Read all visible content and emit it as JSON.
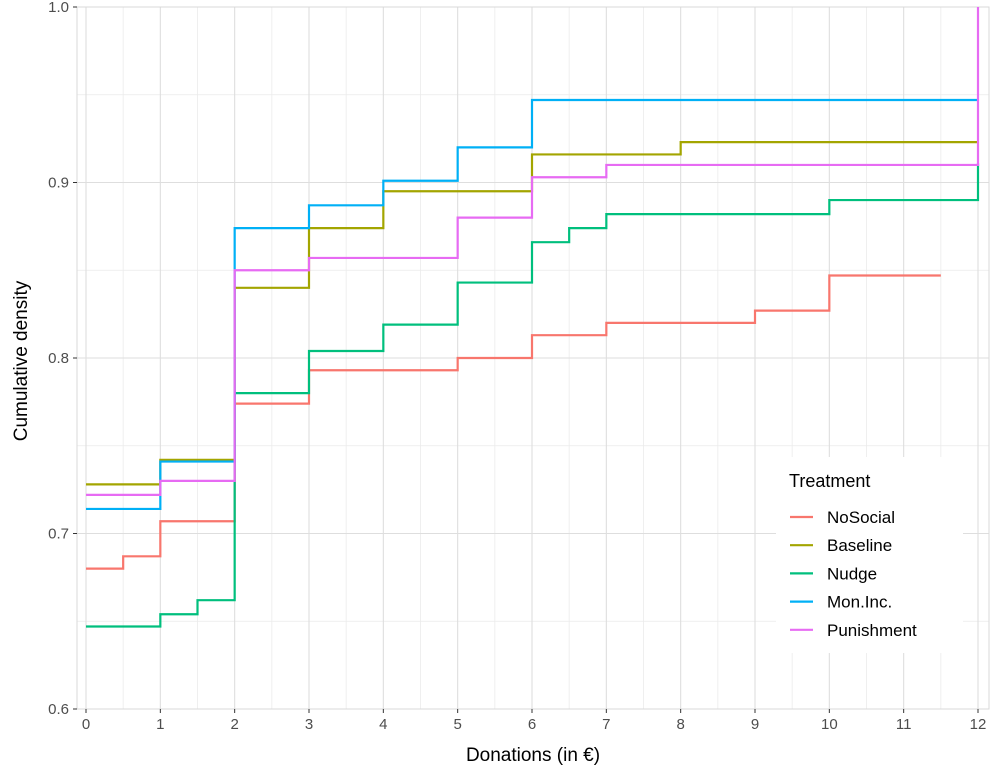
{
  "chart_data": {
    "type": "line",
    "step": true,
    "xlabel": "Donations (in €)",
    "ylabel": "Cumulative density",
    "xlim": [
      0,
      12
    ],
    "ylim": [
      0.6,
      1.0
    ],
    "x_ticks": [
      0,
      1,
      2,
      3,
      4,
      5,
      6,
      7,
      8,
      9,
      10,
      11,
      12
    ],
    "y_ticks": [
      "0.6",
      "0.7",
      "0.8",
      "0.9",
      "1.0"
    ],
    "grid": true,
    "legend": {
      "title": "Treatment",
      "placement": "bottom-right"
    },
    "series": [
      {
        "name": "NoSocial",
        "color": "#F8766D",
        "x": [
          0,
          0.5,
          1,
          2,
          3,
          5,
          6,
          7,
          9,
          10,
          11.5
        ],
        "y": [
          0.68,
          0.687,
          0.707,
          0.774,
          0.793,
          0.8,
          0.813,
          0.82,
          0.827,
          0.847,
          0.847
        ]
      },
      {
        "name": "Baseline",
        "color": "#A3A500",
        "x": [
          0,
          1,
          2,
          3,
          4,
          6,
          8,
          12
        ],
        "y": [
          0.728,
          0.742,
          0.84,
          0.874,
          0.895,
          0.916,
          0.923,
          0.923
        ]
      },
      {
        "name": "Nudge",
        "color": "#00BF7D",
        "x": [
          0,
          1,
          1.5,
          2,
          3,
          4,
          5,
          6,
          6.5,
          7,
          10,
          12
        ],
        "y": [
          0.647,
          0.654,
          0.662,
          0.78,
          0.804,
          0.819,
          0.843,
          0.866,
          0.874,
          0.882,
          0.89,
          0.911
        ]
      },
      {
        "name": "Mon.Inc.",
        "color": "#00B0F6",
        "x": [
          0,
          1,
          2,
          3,
          4,
          5,
          6,
          12
        ],
        "y": [
          0.714,
          0.741,
          0.874,
          0.887,
          0.901,
          0.92,
          0.947,
          0.947
        ]
      },
      {
        "name": "Punishment",
        "color": "#E76BF3",
        "x": [
          0,
          1,
          2,
          3,
          5,
          6,
          7,
          12
        ],
        "y": [
          0.722,
          0.73,
          0.85,
          0.857,
          0.88,
          0.903,
          0.91,
          1.0
        ]
      }
    ]
  }
}
